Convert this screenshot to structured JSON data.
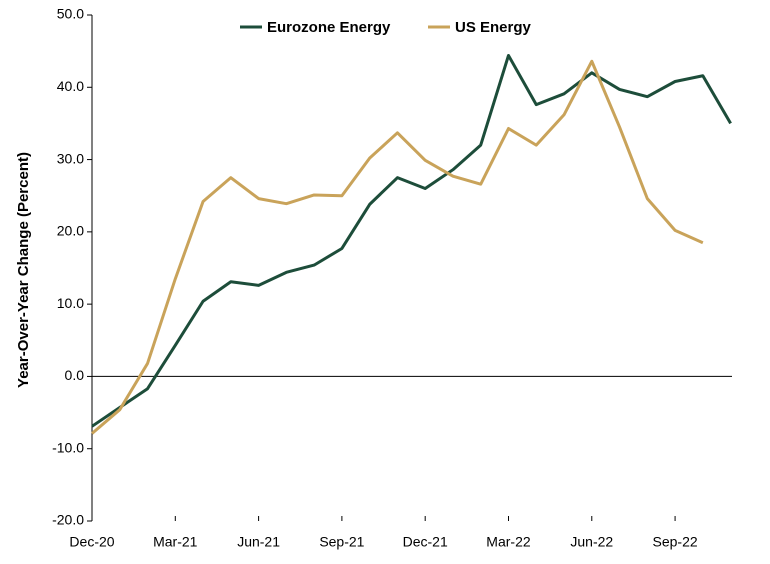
{
  "chart_data": {
    "type": "line",
    "y_label": "Year-Over-Year Change (Percent)",
    "categories": [
      "Dec-20",
      null,
      null,
      "Mar-21",
      null,
      null,
      "Jun-21",
      null,
      null,
      "Sep-21",
      null,
      null,
      "Dec-21",
      null,
      null,
      "Mar-22",
      null,
      null,
      "Jun-22",
      null,
      null,
      "Sep-22",
      null,
      null
    ],
    "series": [
      {
        "name": "Eurozone Energy",
        "color": "#1d4d3a",
        "values": [
          -6.9,
          -4.3,
          -1.7,
          4.3,
          10.4,
          13.1,
          12.6,
          14.4,
          15.4,
          17.7,
          23.8,
          27.5,
          26.0,
          28.6,
          32.0,
          44.4,
          37.6,
          39.1,
          42.0,
          39.7,
          38.7,
          40.8,
          41.6,
          35.0
        ]
      },
      {
        "name": "US Energy",
        "color": "#c9a35a",
        "values": [
          -7.9,
          -4.6,
          1.8,
          13.5,
          24.2,
          27.5,
          24.6,
          23.9,
          25.1,
          25.0,
          30.2,
          33.7,
          29.9,
          27.7,
          26.6,
          34.3,
          32.0,
          36.2,
          43.6,
          34.5,
          24.6,
          20.2,
          18.5,
          null
        ]
      }
    ],
    "ylim": [
      -20,
      50
    ],
    "yticks": [
      {
        "value": -20,
        "label": "-20.0"
      },
      {
        "value": -10,
        "label": "-10.0"
      },
      {
        "value": 0,
        "label": "0.0"
      },
      {
        "value": 10,
        "label": "10.0"
      },
      {
        "value": 20,
        "label": "20.0"
      },
      {
        "value": 30,
        "label": "30.0"
      },
      {
        "value": 40,
        "label": "40.0"
      },
      {
        "value": 50,
        "label": "50.0"
      }
    ],
    "legend": "top"
  }
}
